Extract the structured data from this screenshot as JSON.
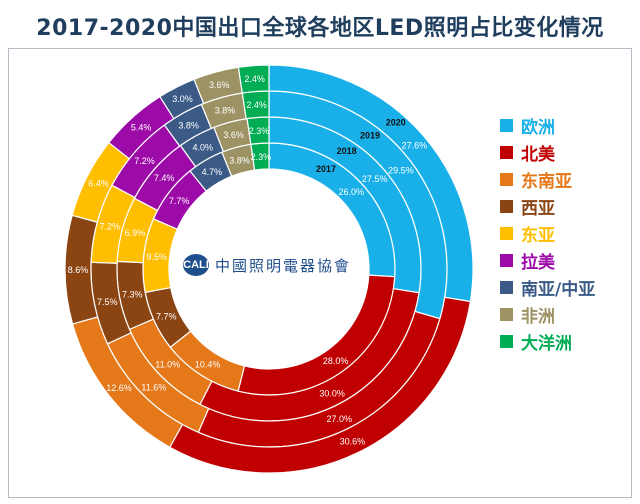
{
  "header": {
    "title": "2017-2020中国出口全球各地区LED照明占比变化情况"
  },
  "logo": {
    "text": "中國照明電器協會",
    "badge": "CALI"
  },
  "chart_data": {
    "type": "donut",
    "title": "2017-2020中国出口全球各地区LED照明占比变化情况",
    "rings": [
      "2017",
      "2018",
      "2019",
      "2020"
    ],
    "categories": [
      "欧洲",
      "北美",
      "东南亚",
      "西亚",
      "东亚",
      "拉美",
      "南亚/中亚",
      "非洲",
      "大洋洲"
    ],
    "colors": [
      "#19b0ea",
      "#c00000",
      "#e57818",
      "#8b4513",
      "#ffbe00",
      "#9c0aa8",
      "#3b5b86",
      "#9c9264",
      "#00ad54"
    ],
    "series": [
      {
        "name": "2017",
        "values": [
          26.0,
          28.0,
          10.4,
          7.7,
          9.5,
          7.7,
          4.7,
          3.8,
          2.3
        ]
      },
      {
        "name": "2018",
        "values": [
          27.5,
          30.0,
          11.0,
          7.3,
          6.9,
          7.4,
          4.0,
          3.6,
          2.3
        ]
      },
      {
        "name": "2019",
        "values": [
          29.5,
          27.0,
          11.6,
          7.5,
          7.2,
          7.2,
          3.8,
          3.8,
          2.4
        ]
      },
      {
        "name": "2020",
        "values": [
          27.6,
          30.6,
          12.6,
          8.6,
          6.4,
          5.4,
          3.0,
          3.6,
          2.4
        ]
      }
    ],
    "value_labels": [
      [
        "26.0%",
        "28.0%",
        "10.4%",
        "7.7%",
        "9.5%",
        "7.7%",
        "4.7%",
        "3.8%",
        "2.3%"
      ],
      [
        "27.5%",
        "30.0%",
        "11.0%",
        "7.3%",
        "6.9%",
        "7.4%",
        "4.0%",
        "3.6%",
        "2.3%"
      ],
      [
        "29.5%",
        "27.0%",
        "11.6%",
        "7.5%",
        "7.2%",
        "7.2%",
        "3.8%",
        "3.8%",
        "2.4%"
      ],
      [
        "27.6%",
        "30.6%",
        "12.6%",
        "8.6%",
        "6.4%",
        "5.4%",
        "3.0%",
        "3.6%",
        "2.4%"
      ]
    ],
    "legend_position": "right"
  }
}
